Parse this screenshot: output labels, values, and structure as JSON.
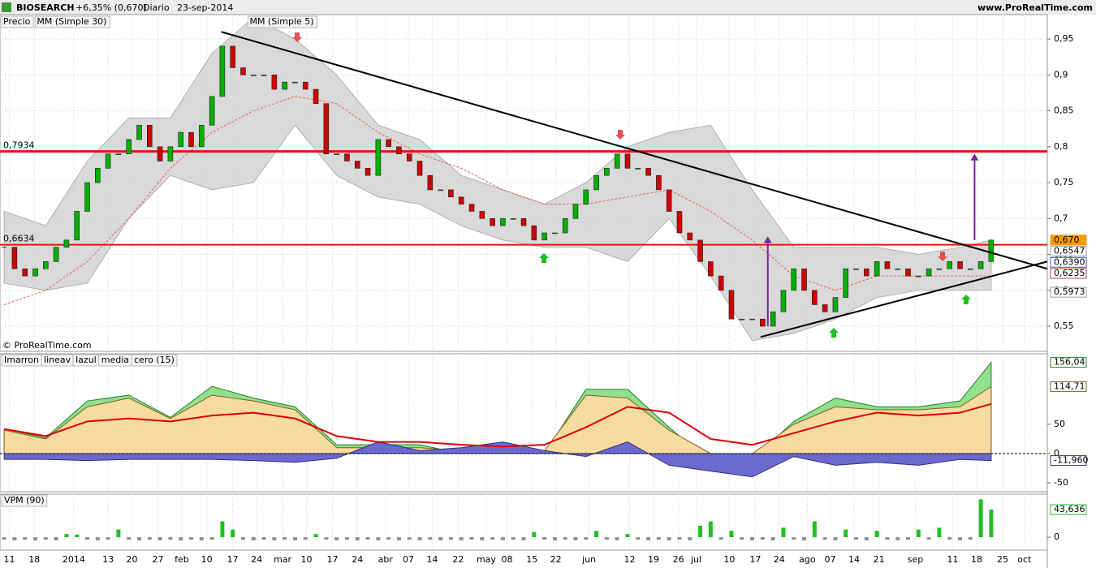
{
  "header": {
    "symbol": "BIOSEARCH",
    "change": "+6,35% (0,670)",
    "period": "Diario",
    "date": "23-sep-2014",
    "site": "www.ProRealTime.com"
  },
  "chart_data": [
    {
      "type": "candlestick",
      "legend": [
        "Precio",
        "MM (Simple 30)",
        "MM (Simple 5)"
      ],
      "copyright": "© ProRealTime.com",
      "values": [
        0.66,
        0.63,
        0.62,
        0.63,
        0.64,
        0.66,
        0.67,
        0.71,
        0.75,
        0.77,
        0.79,
        0.79,
        0.81,
        0.83,
        0.8,
        0.78,
        0.8,
        0.82,
        0.8,
        0.83,
        0.87,
        0.94,
        0.91,
        0.9,
        0.9,
        0.9,
        0.88,
        0.89,
        0.89,
        0.88,
        0.86,
        0.79,
        0.79,
        0.78,
        0.77,
        0.76,
        0.81,
        0.8,
        0.79,
        0.78,
        0.76,
        0.74,
        0.74,
        0.73,
        0.72,
        0.71,
        0.7,
        0.69,
        0.7,
        0.7,
        0.69,
        0.67,
        0.68,
        0.68,
        0.7,
        0.72,
        0.74,
        0.76,
        0.77,
        0.79,
        0.77,
        0.77,
        0.76,
        0.74,
        0.71,
        0.68,
        0.67,
        0.64,
        0.62,
        0.6,
        0.56,
        0.56,
        0.56,
        0.55,
        0.57,
        0.6,
        0.63,
        0.6,
        0.58,
        0.57,
        0.59,
        0.63,
        0.63,
        0.62,
        0.64,
        0.63,
        0.63,
        0.62,
        0.62,
        0.63,
        0.63,
        0.64,
        0.63,
        0.63,
        0.64,
        0.67
      ],
      "xlim": [
        -0.4,
        100.4
      ],
      "xticks": [
        {
          "value": 0.5,
          "label": "11"
        },
        {
          "value": 2.9,
          "label": "18"
        },
        {
          "value": 6.7,
          "label": "2014"
        },
        {
          "value": 10.0,
          "label": "13"
        },
        {
          "value": 12.3,
          "label": "20"
        },
        {
          "value": 14.8,
          "label": "27"
        },
        {
          "value": 17.1,
          "label": "feb"
        },
        {
          "value": 19.5,
          "label": "10"
        },
        {
          "value": 22.0,
          "label": "17"
        },
        {
          "value": 24.3,
          "label": "24"
        },
        {
          "value": 26.8,
          "label": "mar"
        },
        {
          "value": 29.1,
          "label": "10"
        },
        {
          "value": 31.6,
          "label": "17"
        },
        {
          "value": 34.0,
          "label": "24"
        },
        {
          "value": 36.7,
          "label": "abr"
        },
        {
          "value": 38.9,
          "label": "07"
        },
        {
          "value": 41.2,
          "label": "14"
        },
        {
          "value": 43.7,
          "label": "22"
        },
        {
          "value": 46.4,
          "label": "may"
        },
        {
          "value": 48.4,
          "label": "08"
        },
        {
          "value": 50.8,
          "label": "15"
        },
        {
          "value": 53.1,
          "label": "22"
        },
        {
          "value": 56.3,
          "label": "jun"
        },
        {
          "value": 60.2,
          "label": "12"
        },
        {
          "value": 62.5,
          "label": "19"
        },
        {
          "value": 64.9,
          "label": "26"
        },
        {
          "value": 66.6,
          "label": "jul"
        },
        {
          "value": 69.8,
          "label": "10"
        },
        {
          "value": 72.3,
          "label": "17"
        },
        {
          "value": 74.6,
          "label": "24"
        },
        {
          "value": 77.3,
          "label": "ago"
        },
        {
          "value": 79.5,
          "label": "07"
        },
        {
          "value": 81.8,
          "label": "14"
        },
        {
          "value": 84.2,
          "label": "21"
        },
        {
          "value": 87.7,
          "label": "sep"
        },
        {
          "value": 91.3,
          "label": "11"
        },
        {
          "value": 93.6,
          "label": "18"
        },
        {
          "value": 96.1,
          "label": "25"
        },
        {
          "value": 98.2,
          "label": "oct"
        }
      ],
      "ylim": [
        0.515,
        0.984
      ],
      "yticks": [
        {
          "value": 0.55,
          "label": "0,55"
        },
        {
          "value": 0.6,
          "label": "0,6"
        },
        {
          "value": 0.65,
          "label": "0,65"
        },
        {
          "value": 0.7,
          "label": "0,7"
        },
        {
          "value": 0.75,
          "label": "0,75"
        },
        {
          "value": 0.8,
          "label": "0,8"
        },
        {
          "value": 0.85,
          "label": "0,85"
        },
        {
          "value": 0.9,
          "label": "0,9"
        },
        {
          "value": 0.95,
          "label": "0,95"
        }
      ],
      "up_color": "#00b000",
      "down_color": "#d00000",
      "grid": true,
      "band": {
        "x": [
          0,
          4,
          8,
          12,
          16,
          20,
          24,
          28,
          32,
          36,
          40,
          44,
          48,
          52,
          56,
          60,
          64,
          68,
          72,
          76,
          80,
          84,
          88,
          92,
          95
        ],
        "upper": [
          0.71,
          0.69,
          0.78,
          0.84,
          0.84,
          0.93,
          0.98,
          0.95,
          0.9,
          0.83,
          0.81,
          0.76,
          0.74,
          0.72,
          0.75,
          0.8,
          0.82,
          0.83,
          0.74,
          0.66,
          0.66,
          0.66,
          0.65,
          0.66,
          0.67
        ],
        "lower": [
          0.61,
          0.6,
          0.61,
          0.7,
          0.76,
          0.74,
          0.75,
          0.83,
          0.76,
          0.73,
          0.72,
          0.69,
          0.67,
          0.66,
          0.66,
          0.64,
          0.7,
          0.62,
          0.53,
          0.54,
          0.56,
          0.59,
          0.6,
          0.6,
          0.6
        ],
        "ma30": [
          0.58,
          0.6,
          0.64,
          0.7,
          0.77,
          0.82,
          0.85,
          0.87,
          0.86,
          0.82,
          0.79,
          0.77,
          0.74,
          0.72,
          0.72,
          0.73,
          0.74,
          0.71,
          0.67,
          0.62,
          0.6,
          0.62,
          0.62,
          0.62,
          0.62
        ]
      },
      "levels": [
        {
          "value": 0.7934,
          "label": "0,7934"
        },
        {
          "value": 0.6634,
          "label": "0,6634"
        }
      ],
      "price_labels": [
        {
          "value": 0.67,
          "label": "0,670",
          "color": "#ff9900"
        },
        {
          "value": 0.6547,
          "label": "0,6547",
          "color": "#a0a0a0"
        },
        {
          "value": 0.639,
          "label": "0,6390",
          "color": "#3050d0"
        },
        {
          "value": 0.6235,
          "label": "0,6235",
          "color": "#d04040"
        },
        {
          "value": 0.5973,
          "label": "0,5973",
          "color": "#a0a0a0"
        }
      ],
      "trendlines": [
        {
          "x": [
            20.9,
            100.4
          ],
          "y": [
            0.96,
            0.63
          ]
        },
        {
          "x": [
            72.8,
            100.4
          ],
          "y": [
            0.535,
            0.64
          ]
        }
      ],
      "arrows": [
        {
          "x": 73.5,
          "y": [
            0.55,
            0.675
          ]
        },
        {
          "x": 93.4,
          "y": [
            0.67,
            0.79
          ]
        }
      ]
    },
    {
      "type": "area",
      "x": [
        0,
        4,
        8,
        12,
        16,
        20,
        24,
        28,
        32,
        36,
        40,
        44,
        48,
        52,
        56,
        60,
        64,
        68,
        72,
        76,
        80,
        84,
        88,
        92,
        95
      ],
      "ylim": [
        -65.3,
        170.8
      ],
      "yticks": [
        -50,
        0,
        50
      ],
      "zero_line": {
        "name": "cero (15)",
        "value": 0
      },
      "series": [
        {
          "name": "Imarron",
          "color": "#f7dba0",
          "stroke": "#806020",
          "kind": "area",
          "values": [
            40,
            25,
            80,
            95,
            60,
            100,
            90,
            75,
            10,
            10,
            10,
            5,
            10,
            5,
            100,
            95,
            40,
            0,
            0,
            50,
            80,
            75,
            75,
            80,
            114.71
          ],
          "last_label": "114,71"
        },
        {
          "name": "lineav",
          "color": "#90e090",
          "stroke": "#208020",
          "kind": "area",
          "values": [
            42,
            27,
            90,
            100,
            62,
            115,
            95,
            80,
            15,
            15,
            15,
            0,
            5,
            0,
            110,
            110,
            45,
            -15,
            -10,
            55,
            95,
            80,
            80,
            90,
            156.04
          ],
          "last_label": "156,04"
        },
        {
          "name": "lazul",
          "color": "#6a6ad0",
          "stroke": "#303080",
          "kind": "area",
          "values": [
            -10,
            -10,
            -12,
            -10,
            -10,
            -10,
            -12,
            -15,
            -8,
            20,
            5,
            10,
            20,
            5,
            -5,
            20,
            -20,
            -30,
            -40,
            -5,
            -20,
            -15,
            -20,
            -10,
            -11.96
          ],
          "last_label": "-11,960"
        },
        {
          "name": "media",
          "color": "#e00000",
          "kind": "line",
          "values": [
            42,
            30,
            55,
            60,
            55,
            65,
            70,
            60,
            30,
            20,
            20,
            15,
            12,
            15,
            45,
            80,
            70,
            25,
            15,
            35,
            55,
            70,
            65,
            70,
            85
          ]
        }
      ]
    },
    {
      "type": "bar",
      "legend": "VPM (90)",
      "ylim": [
        -20.5,
        68
      ],
      "yticks": [
        0
      ],
      "up_color": "#20c020",
      "down_color": "#909090",
      "last_label": "43,636",
      "values": [
        -4,
        -5,
        -4,
        -5,
        -4,
        -5,
        5,
        4,
        -4,
        -5,
        -4,
        12,
        -4,
        -5,
        -4,
        -5,
        -4,
        -5,
        -4,
        -5,
        -4,
        25,
        12,
        -4,
        -5,
        -4,
        -5,
        -4,
        -5,
        -4,
        5,
        -4,
        -5,
        -4,
        -5,
        -4,
        -5,
        -4,
        -5,
        -4,
        -5,
        -4,
        -5,
        -4,
        -5,
        -4,
        -5,
        -4,
        -5,
        -4,
        -5,
        8,
        -4,
        -5,
        -4,
        -5,
        -4,
        10,
        -4,
        -5,
        5,
        -4,
        -5,
        -4,
        -5,
        -4,
        -5,
        18,
        25,
        -4,
        10,
        -4,
        -5,
        -4,
        -5,
        15,
        -4,
        -5,
        25,
        -4,
        -5,
        12,
        -4,
        -5,
        10,
        -4,
        -5,
        -4,
        12,
        -4,
        15,
        -4,
        -5,
        -4,
        60,
        43.636
      ]
    }
  ]
}
